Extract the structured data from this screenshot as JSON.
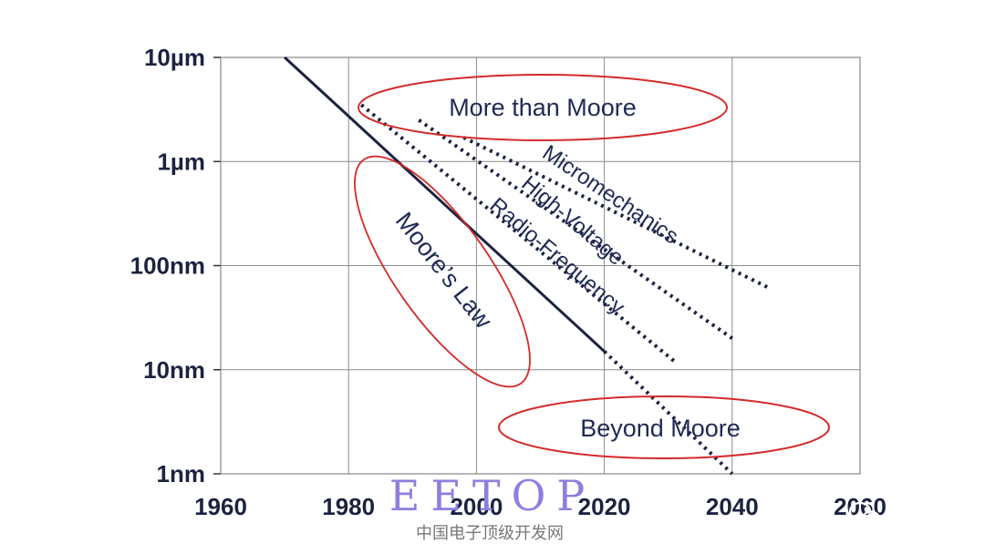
{
  "chart_data": {
    "type": "line",
    "y_scale": "log",
    "ylim": [
      "1nm",
      "10µm"
    ],
    "xlim": [
      1960,
      2060
    ],
    "y_ticks": [
      "10µm",
      "1µm",
      "100nm",
      "10nm",
      "1nm"
    ],
    "y_tick_values_nm": [
      10000,
      1000,
      100,
      10,
      1
    ],
    "x_ticks": [
      "1960",
      "1980",
      "2000",
      "2020",
      "2040",
      "2060"
    ],
    "grid": true,
    "series": [
      {
        "name": "Moore’s Law",
        "style": "solid",
        "color": "#1c2340",
        "points": [
          {
            "x": 1970,
            "y": 10000
          },
          {
            "x": 2020,
            "y": 15
          }
        ]
      },
      {
        "name": "Moore’s Law",
        "style": "dotted",
        "color": "#1c2340",
        "points": [
          {
            "x": 2020,
            "y": 15
          },
          {
            "x": 2040,
            "y": 1
          }
        ]
      },
      {
        "name": "Radio-Frequency",
        "style": "dotted",
        "color": "#1c2340",
        "points": [
          {
            "x": 1982,
            "y": 3500
          },
          {
            "x": 2031,
            "y": 12
          }
        ]
      },
      {
        "name": "High-Voltage",
        "style": "dotted",
        "color": "#1c2340",
        "points": [
          {
            "x": 1991,
            "y": 2500
          },
          {
            "x": 2040,
            "y": 20
          }
        ]
      },
      {
        "name": "Micromechanics",
        "style": "dotted",
        "color": "#1c2340",
        "points": [
          {
            "x": 1998,
            "y": 1700
          },
          {
            "x": 2046,
            "y": 60
          }
        ]
      }
    ],
    "annotations": [
      {
        "text": "More than Moore",
        "shape": "ellipse",
        "color": "#d42a2a"
      },
      {
        "text": "Moore’s Law",
        "shape": "ellipse",
        "color": "#d42a2a"
      },
      {
        "text": "Beyond Moore",
        "shape": "ellipse",
        "color": "#d42a2a"
      }
    ],
    "line_labels": {
      "micromechanics": "Micromechanics",
      "high_voltage": "High-Voltage",
      "radio_frequency": "Radio-Frequency"
    }
  },
  "watermark": {
    "main": "EETOP",
    "sub": "中国电子顶级开发网"
  },
  "brand": {
    "label": "EETOP",
    "icon": "wechat-icon"
  }
}
